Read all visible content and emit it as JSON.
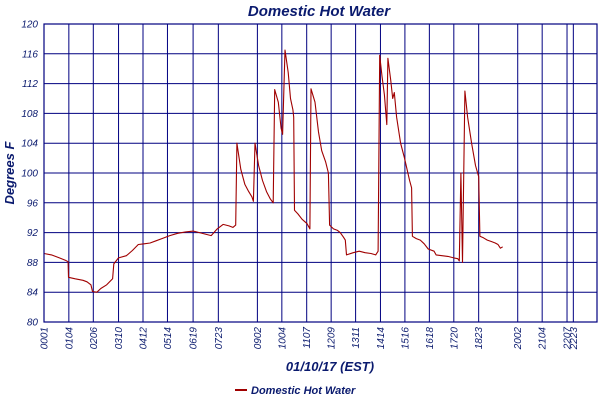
{
  "chart_data": {
    "type": "line",
    "title": "Domestic Hot Water",
    "xlabel": "01/10/17 (EST)",
    "ylabel": "Degrees F",
    "ylim": [
      80,
      120
    ],
    "yticks": [
      80,
      84,
      88,
      92,
      96,
      100,
      104,
      108,
      112,
      116,
      120
    ],
    "xlim": [
      1,
      1403
    ],
    "xticks": [
      {
        "label": "0001",
        "min": 1
      },
      {
        "label": "0104",
        "min": 64
      },
      {
        "label": "0206",
        "min": 126
      },
      {
        "label": "0310",
        "min": 190
      },
      {
        "label": "0412",
        "min": 252
      },
      {
        "label": "0514",
        "min": 314
      },
      {
        "label": "0619",
        "min": 379
      },
      {
        "label": "0723",
        "min": 443
      },
      {
        "label": "0902",
        "min": 542
      },
      {
        "label": "1004",
        "min": 604
      },
      {
        "label": "1107",
        "min": 667
      },
      {
        "label": "1209",
        "min": 729
      },
      {
        "label": "1311",
        "min": 791
      },
      {
        "label": "1414",
        "min": 854
      },
      {
        "label": "1516",
        "min": 916
      },
      {
        "label": "1618",
        "min": 978
      },
      {
        "label": "1720",
        "min": 1040
      },
      {
        "label": "1823",
        "min": 1103
      },
      {
        "label": "2002",
        "min": 1202
      },
      {
        "label": "2104",
        "min": 1264
      },
      {
        "label": "2207",
        "min": 1327
      },
      {
        "label": "2223",
        "min": 1343
      }
    ],
    "grid": true,
    "legend_position": "bottom-center",
    "colors": {
      "series": "#a00000",
      "grid": "#000080",
      "text": "#0a1a6e"
    },
    "series": [
      {
        "name": "Domestic Hot Water",
        "points": [
          [
            1,
            89.2
          ],
          [
            20,
            89.0
          ],
          [
            40,
            88.6
          ],
          [
            55,
            88.3
          ],
          [
            62,
            88.1
          ],
          [
            63,
            86.0
          ],
          [
            80,
            85.8
          ],
          [
            100,
            85.6
          ],
          [
            110,
            85.4
          ],
          [
            120,
            85.0
          ],
          [
            124,
            84.1
          ],
          [
            135,
            84.0
          ],
          [
            145,
            84.5
          ],
          [
            160,
            85.0
          ],
          [
            175,
            85.8
          ],
          [
            178,
            87.8
          ],
          [
            190,
            88.6
          ],
          [
            210,
            88.9
          ],
          [
            225,
            89.6
          ],
          [
            240,
            90.4
          ],
          [
            255,
            90.5
          ],
          [
            270,
            90.6
          ],
          [
            285,
            90.9
          ],
          [
            300,
            91.2
          ],
          [
            320,
            91.6
          ],
          [
            340,
            91.9
          ],
          [
            360,
            92.1
          ],
          [
            380,
            92.2
          ],
          [
            395,
            92.0
          ],
          [
            410,
            91.8
          ],
          [
            425,
            91.6
          ],
          [
            440,
            92.5
          ],
          [
            455,
            93.1
          ],
          [
            470,
            92.9
          ],
          [
            480,
            92.7
          ],
          [
            487,
            93.0
          ],
          [
            490,
            104.0
          ],
          [
            500,
            100.5
          ],
          [
            510,
            98.5
          ],
          [
            520,
            97.5
          ],
          [
            528,
            96.8
          ],
          [
            532,
            96.2
          ],
          [
            536,
            104.0
          ],
          [
            545,
            101.0
          ],
          [
            555,
            99.0
          ],
          [
            565,
            97.5
          ],
          [
            575,
            96.5
          ],
          [
            582,
            96.0
          ],
          [
            586,
            111.2
          ],
          [
            595,
            109.5
          ],
          [
            602,
            106.0
          ],
          [
            606,
            105.2
          ],
          [
            612,
            116.5
          ],
          [
            620,
            113.5
          ],
          [
            626,
            110.0
          ],
          [
            632,
            108.5
          ],
          [
            634,
            107.5
          ],
          [
            636,
            95.0
          ],
          [
            645,
            94.5
          ],
          [
            655,
            93.8
          ],
          [
            668,
            93.2
          ],
          [
            675,
            92.5
          ],
          [
            678,
            111.3
          ],
          [
            688,
            109.5
          ],
          [
            697,
            105.5
          ],
          [
            705,
            103.0
          ],
          [
            715,
            101.5
          ],
          [
            722,
            100.0
          ],
          [
            725,
            93.0
          ],
          [
            735,
            92.5
          ],
          [
            745,
            92.3
          ],
          [
            752,
            92.0
          ],
          [
            760,
            91.4
          ],
          [
            765,
            91.0
          ],
          [
            768,
            89.0
          ],
          [
            785,
            89.3
          ],
          [
            800,
            89.5
          ],
          [
            815,
            89.3
          ],
          [
            830,
            89.2
          ],
          [
            842,
            89.0
          ],
          [
            848,
            89.5
          ],
          [
            852,
            115.8
          ],
          [
            858,
            113.0
          ],
          [
            864,
            110.5
          ],
          [
            870,
            106.5
          ],
          [
            873,
            115.4
          ],
          [
            880,
            112.5
          ],
          [
            885,
            110.0
          ],
          [
            889,
            110.8
          ],
          [
            895,
            107.5
          ],
          [
            905,
            104.0
          ],
          [
            915,
            102.0
          ],
          [
            928,
            99.0
          ],
          [
            933,
            98.0
          ],
          [
            935,
            91.5
          ],
          [
            945,
            91.2
          ],
          [
            955,
            91.0
          ],
          [
            965,
            90.5
          ],
          [
            975,
            89.8
          ],
          [
            990,
            89.5
          ],
          [
            995,
            89.0
          ],
          [
            1010,
            88.9
          ],
          [
            1025,
            88.8
          ],
          [
            1040,
            88.6
          ],
          [
            1050,
            88.5
          ],
          [
            1054,
            88.2
          ],
          [
            1058,
            100.0
          ],
          [
            1062,
            88.0
          ],
          [
            1068,
            111.0
          ],
          [
            1075,
            107.5
          ],
          [
            1085,
            104.0
          ],
          [
            1095,
            101.0
          ],
          [
            1103,
            99.5
          ],
          [
            1106,
            91.5
          ],
          [
            1115,
            91.3
          ],
          [
            1125,
            91.0
          ],
          [
            1135,
            90.8
          ],
          [
            1145,
            90.6
          ],
          [
            1152,
            90.4
          ],
          [
            1158,
            89.9
          ],
          [
            1164,
            90.1
          ]
        ]
      }
    ]
  }
}
